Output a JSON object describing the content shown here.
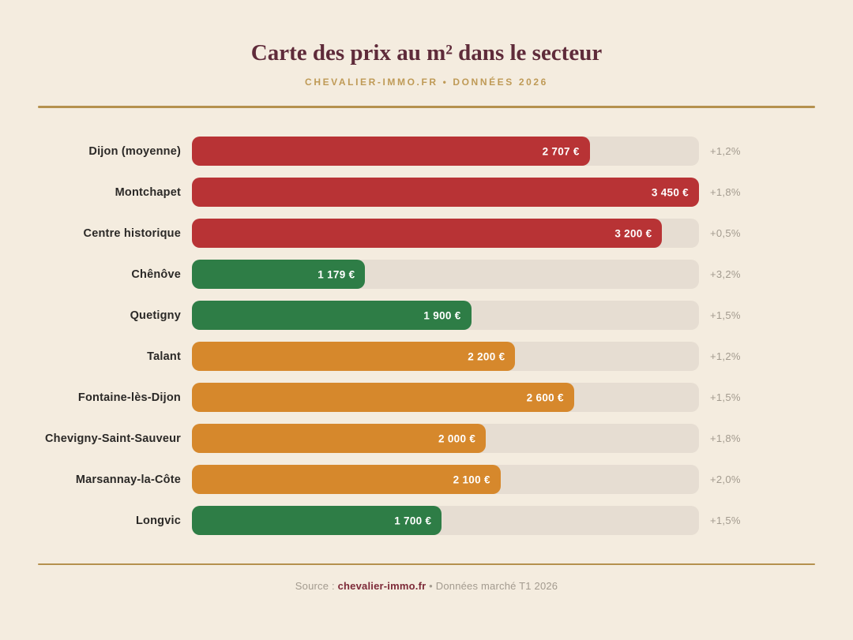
{
  "header": {
    "title": "Carte des prix au m² dans le secteur",
    "subtitle": "CHEVALIER-IMMO.FR • DONNÉES 2026"
  },
  "colors": {
    "bg": "#f4ecdf",
    "track": "#e6ddd2",
    "title": "#5f2b3a",
    "gold": "#bf9a56",
    "rule": "#b5914e",
    "label": "#2b2927",
    "muted": "#a39b8f",
    "brand": "#7d2a38",
    "red": "#b83335",
    "green": "#2e7d46",
    "orange": "#d6882c"
  },
  "chart_data": {
    "type": "bar",
    "orientation": "horizontal",
    "title": "Carte des prix au m² dans le secteur",
    "max_value": 3450,
    "grid": false,
    "legend": false,
    "categories": [
      "Dijon (moyenne)",
      "Montchapet",
      "Centre historique",
      "Chênôve",
      "Quetigny",
      "Talant",
      "Fontaine-lès-Dijon",
      "Chevigny-Saint-Sauveur",
      "Marsannay-la-Côte",
      "Longvic"
    ],
    "values": [
      2707,
      3450,
      3200,
      1179,
      1900,
      2200,
      2600,
      2000,
      2100,
      1700
    ],
    "value_labels": [
      "2 707 €",
      "3 450 €",
      "3 200 €",
      "1 179 €",
      "1 900 €",
      "2 200 €",
      "2 600 €",
      "2 000 €",
      "2 100 €",
      "1 700 €"
    ],
    "changes": [
      "+1,2%",
      "+1,8%",
      "+0,5%",
      "+3,2%",
      "+1,5%",
      "+1,2%",
      "+1,5%",
      "+1,8%",
      "+2,0%",
      "+1,5%"
    ],
    "bar_colors": [
      "#b83335",
      "#b83335",
      "#b83335",
      "#2e7d46",
      "#2e7d46",
      "#d6882c",
      "#d6882c",
      "#d6882c",
      "#d6882c",
      "#2e7d46"
    ]
  },
  "footer": {
    "source_prefix": "Source : ",
    "source_brand": "chevalier-immo.fr",
    "source_suffix": " • Données marché T1 2026"
  }
}
